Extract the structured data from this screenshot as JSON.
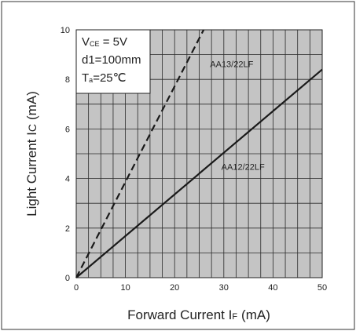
{
  "chart_data": {
    "type": "line",
    "xlabel": {
      "main": "Forward Current  I",
      "sub": "F",
      "unit": "(mA)"
    },
    "ylabel": {
      "main": "Light Current  I",
      "sub": "C",
      "unit": "(mA)"
    },
    "xlim": [
      0,
      50
    ],
    "ylim": [
      0,
      10
    ],
    "x_ticks": [
      0,
      10,
      20,
      30,
      40,
      50
    ],
    "y_ticks": [
      0,
      2,
      4,
      6,
      8,
      10
    ],
    "grid": true,
    "conditions": [
      {
        "main": "V",
        "sub": "CE",
        "rest": " = 5V"
      },
      {
        "main": "d1=100mm",
        "sub": "",
        "rest": ""
      },
      {
        "main": "T",
        "sub": "a",
        "rest": "=25℃"
      }
    ],
    "series": [
      {
        "name": "AA13/22LF",
        "style": "dashed",
        "x": [
          0,
          25.9
        ],
        "y": [
          0,
          10
        ]
      },
      {
        "name": "AA12/22LF",
        "style": "solid",
        "x": [
          0,
          50
        ],
        "y": [
          0,
          8.4
        ]
      }
    ],
    "colors": {
      "plot_background": "#c4c4c4",
      "line": "#1a1a1a",
      "border": "#333333"
    }
  }
}
